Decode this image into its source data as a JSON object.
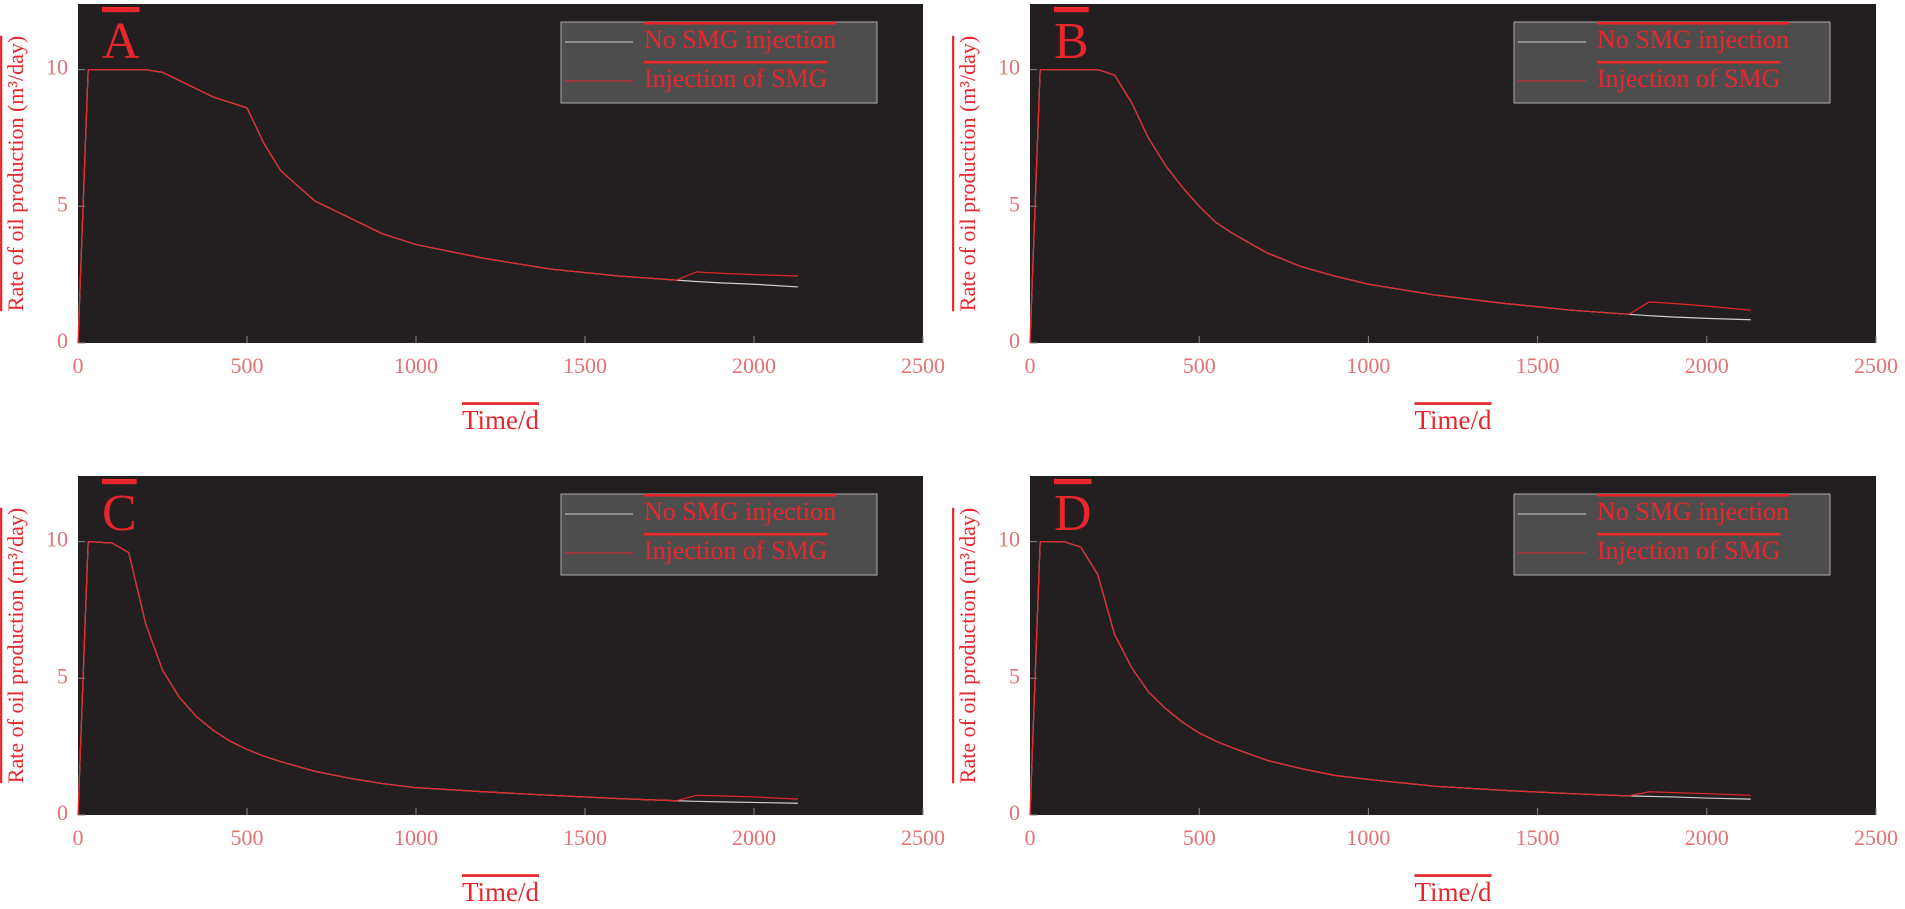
{
  "chart_data": [
    {
      "type": "line",
      "panel": "A",
      "xlabel": "Time/d",
      "ylabel": "Rate of oil production (m³/day)",
      "x": [
        0,
        30,
        100,
        150,
        200,
        250,
        300,
        350,
        400,
        450,
        500,
        550,
        600,
        700,
        800,
        900,
        1000,
        1200,
        1400,
        1600,
        1770,
        1830,
        1900,
        2000,
        2130
      ],
      "series": [
        {
          "name": "No SMG injection",
          "color": "#cfcfcf",
          "values": [
            0,
            10,
            10,
            10,
            10,
            9.9,
            9.6,
            9.3,
            9.0,
            8.8,
            8.6,
            7.3,
            6.3,
            5.2,
            4.6,
            4.0,
            3.6,
            3.1,
            2.7,
            2.45,
            2.3,
            2.25,
            2.2,
            2.15,
            2.05
          ]
        },
        {
          "name": "Injection of SMG",
          "color": "#e8262b",
          "values": [
            0,
            10,
            10,
            10,
            10,
            9.9,
            9.6,
            9.3,
            9.0,
            8.8,
            8.6,
            7.3,
            6.3,
            5.2,
            4.6,
            4.0,
            3.6,
            3.1,
            2.7,
            2.45,
            2.3,
            2.6,
            2.55,
            2.5,
            2.45
          ]
        }
      ],
      "xlim": [
        0,
        2500
      ],
      "xticks": [
        0,
        500,
        1000,
        1500,
        2000,
        2500
      ],
      "ylim": [
        0,
        12.4
      ],
      "yticks": [
        0,
        5,
        10
      ],
      "legend": "upper right"
    },
    {
      "type": "line",
      "panel": "B",
      "xlabel": "Time/d",
      "ylabel": "Rate of oil production (m³/day)",
      "x": [
        0,
        30,
        100,
        150,
        200,
        250,
        300,
        350,
        400,
        450,
        500,
        550,
        600,
        700,
        800,
        900,
        1000,
        1200,
        1400,
        1600,
        1770,
        1830,
        1900,
        2000,
        2130
      ],
      "series": [
        {
          "name": "No SMG injection",
          "color": "#cfcfcf",
          "values": [
            0,
            10,
            10,
            10,
            10,
            9.8,
            8.8,
            7.5,
            6.5,
            5.7,
            5.0,
            4.4,
            4.0,
            3.3,
            2.8,
            2.45,
            2.15,
            1.75,
            1.45,
            1.2,
            1.05,
            1.0,
            0.95,
            0.9,
            0.85
          ]
        },
        {
          "name": "Injection of SMG",
          "color": "#e8262b",
          "values": [
            0,
            10,
            10,
            10,
            10,
            9.8,
            8.8,
            7.5,
            6.5,
            5.7,
            5.0,
            4.4,
            4.0,
            3.3,
            2.8,
            2.45,
            2.15,
            1.75,
            1.45,
            1.2,
            1.05,
            1.5,
            1.45,
            1.35,
            1.2
          ]
        }
      ],
      "xlim": [
        0,
        2500
      ],
      "xticks": [
        0,
        500,
        1000,
        1500,
        2000,
        2500
      ],
      "ylim": [
        0,
        12.4
      ],
      "yticks": [
        0,
        5,
        10
      ],
      "legend": "upper right"
    },
    {
      "type": "line",
      "panel": "C",
      "xlabel": "Time/d",
      "ylabel": "Rate of oil production (m³/day)",
      "x": [
        0,
        30,
        100,
        150,
        200,
        250,
        300,
        350,
        400,
        450,
        500,
        550,
        600,
        700,
        800,
        900,
        1000,
        1200,
        1400,
        1600,
        1770,
        1830,
        1900,
        2000,
        2130
      ],
      "series": [
        {
          "name": "No SMG injection",
          "color": "#cfcfcf",
          "values": [
            0,
            10,
            9.95,
            9.6,
            7.0,
            5.3,
            4.3,
            3.6,
            3.1,
            2.7,
            2.4,
            2.15,
            1.95,
            1.6,
            1.35,
            1.15,
            1.0,
            0.85,
            0.72,
            0.6,
            0.52,
            0.5,
            0.48,
            0.46,
            0.43
          ]
        },
        {
          "name": "Injection of SMG",
          "color": "#e8262b",
          "values": [
            0,
            10,
            9.95,
            9.6,
            7.0,
            5.3,
            4.3,
            3.6,
            3.1,
            2.7,
            2.4,
            2.15,
            1.95,
            1.6,
            1.35,
            1.15,
            1.0,
            0.85,
            0.72,
            0.6,
            0.52,
            0.72,
            0.7,
            0.66,
            0.58
          ]
        }
      ],
      "xlim": [
        0,
        2500
      ],
      "xticks": [
        0,
        500,
        1000,
        1500,
        2000,
        2500
      ],
      "ylim": [
        0,
        12.4
      ],
      "yticks": [
        0,
        5,
        10
      ],
      "legend": "upper right"
    },
    {
      "type": "line",
      "panel": "D",
      "xlabel": "Time/d",
      "ylabel": "Rate of oil production (m³/day)",
      "x": [
        0,
        30,
        100,
        150,
        200,
        250,
        300,
        350,
        400,
        450,
        500,
        550,
        600,
        700,
        800,
        900,
        1000,
        1200,
        1400,
        1600,
        1770,
        1830,
        1900,
        2000,
        2130
      ],
      "series": [
        {
          "name": "No SMG injection",
          "color": "#cfcfcf",
          "values": [
            0,
            10,
            10,
            9.8,
            8.8,
            6.6,
            5.4,
            4.5,
            3.9,
            3.4,
            3.0,
            2.7,
            2.45,
            2.0,
            1.7,
            1.45,
            1.3,
            1.05,
            0.9,
            0.78,
            0.7,
            0.68,
            0.66,
            0.62,
            0.58
          ]
        },
        {
          "name": "Injection of SMG",
          "color": "#e8262b",
          "values": [
            0,
            10,
            10,
            9.8,
            8.8,
            6.6,
            5.4,
            4.5,
            3.9,
            3.4,
            3.0,
            2.7,
            2.45,
            2.0,
            1.7,
            1.45,
            1.3,
            1.05,
            0.9,
            0.78,
            0.7,
            0.85,
            0.82,
            0.78,
            0.72
          ]
        }
      ],
      "xlim": [
        0,
        2500
      ],
      "xticks": [
        0,
        500,
        1000,
        1500,
        2000,
        2500
      ],
      "ylim": [
        0,
        12.4
      ],
      "yticks": [
        0,
        5,
        10
      ],
      "legend": "upper right"
    }
  ]
}
